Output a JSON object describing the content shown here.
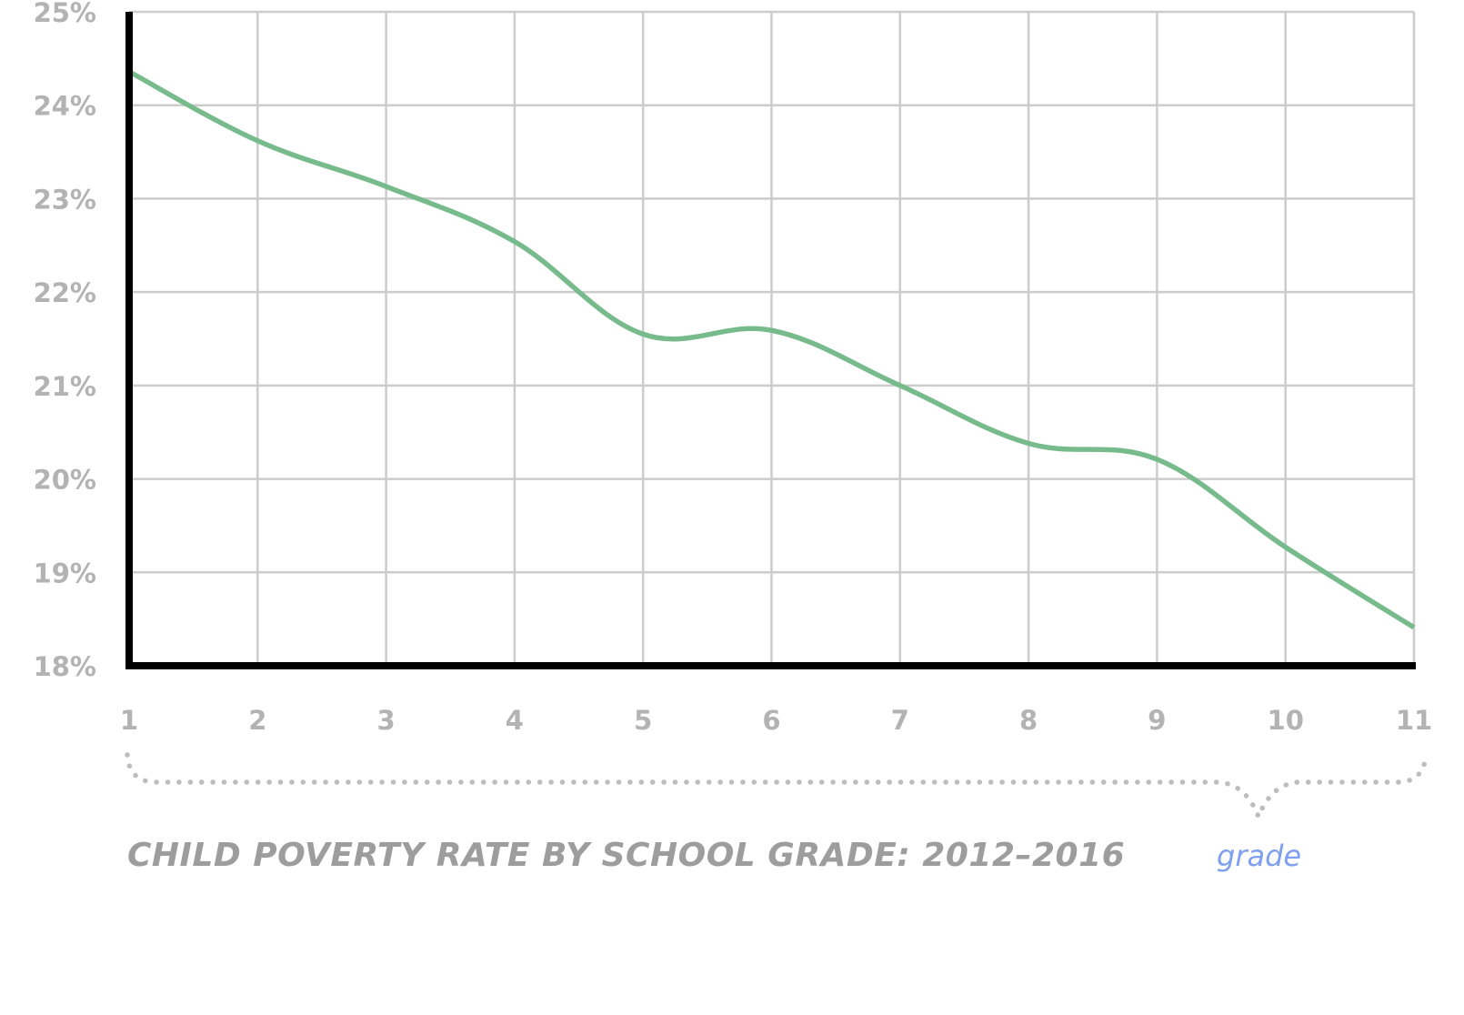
{
  "chart_data": {
    "type": "line",
    "title": "CHILD POVERTY RATE BY SCHOOL GRADE: 2012–2016",
    "xlabel": "grade",
    "ylabel": "",
    "x": [
      1,
      2,
      3,
      4,
      5,
      6,
      7,
      8,
      9,
      10,
      11
    ],
    "series": [
      {
        "name": "Child poverty rate",
        "color": "#77bb8c",
        "values": [
          24.36,
          23.62,
          23.13,
          22.54,
          21.55,
          21.59,
          21.0,
          20.38,
          20.21,
          19.27,
          18.41
        ]
      }
    ],
    "ylim": [
      18,
      25
    ],
    "xlim": [
      1,
      11
    ],
    "yticks": [
      "18%",
      "19%",
      "20%",
      "21%",
      "22%",
      "23%",
      "24%",
      "25%"
    ],
    "xticks": [
      "1",
      "2",
      "3",
      "4",
      "5",
      "6",
      "7",
      "8",
      "9",
      "10",
      "11"
    ],
    "grid": true,
    "legend": "none"
  },
  "colors": {
    "line": "#77bb8c",
    "grid": "#cccccc",
    "axis": "#000000",
    "tick_text": "#b3b3b3",
    "title_text": "#9d9d9d",
    "axis_label_text": "#7f9ff0",
    "brace": "#bdbdbd"
  },
  "labels": {
    "title": "CHILD POVERTY RATE BY SCHOOL GRADE: 2012–2016",
    "x_axis_label": "grade"
  }
}
